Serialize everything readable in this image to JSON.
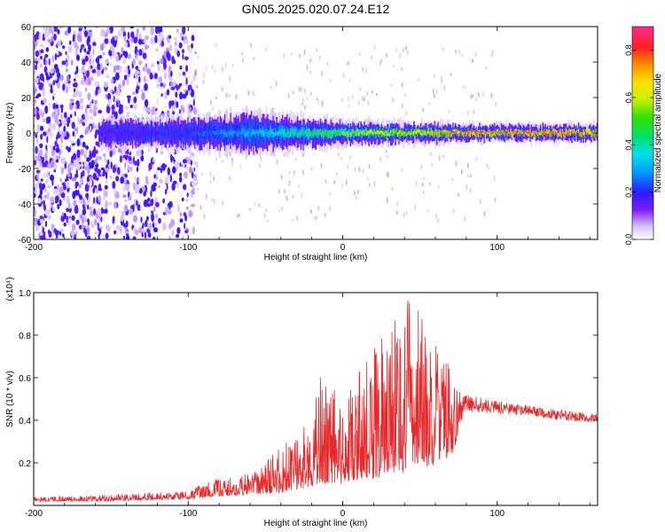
{
  "title": "GN05.2025.020.07.24.E12",
  "colors": {
    "snr_line": "#e8282a",
    "frame": "#000000",
    "spectrogram_bg": "#ffffff"
  },
  "chart_data": [
    {
      "type": "heatmap",
      "xlabel": "Height of straight line (km)",
      "ylabel": "Frequency (Hz)",
      "xlim": [
        -200,
        165
      ],
      "ylim": [
        -60,
        60
      ],
      "xticks": [
        -200,
        -100,
        0,
        100
      ],
      "yticks": [
        -60,
        -40,
        -20,
        0,
        20,
        40,
        60
      ],
      "grid": false,
      "colorbar": {
        "label": "Normalized spectral amplitude",
        "range": [
          0,
          0.9
        ],
        "ticks": [
          0.0,
          0.2,
          0.4,
          0.6,
          0.8
        ]
      },
      "description_points": {
        "band_center_hz": 0,
        "band_halfwidth_hz": [
          [
            -155,
            8
          ],
          [
            -100,
            9
          ],
          [
            -60,
            12
          ],
          [
            -35,
            10
          ],
          [
            0,
            7
          ],
          [
            60,
            6
          ],
          [
            70,
            5
          ],
          [
            165,
            5
          ]
        ],
        "band_peak_amplitude": [
          [
            -155,
            0.2
          ],
          [
            -100,
            0.25
          ],
          [
            -60,
            0.35
          ],
          [
            -30,
            0.45
          ],
          [
            0,
            0.6
          ],
          [
            50,
            0.7
          ],
          [
            70,
            0.85
          ],
          [
            120,
            0.9
          ],
          [
            165,
            0.85
          ]
        ],
        "noise_region_km": [
          -200,
          -95
        ]
      }
    },
    {
      "type": "line",
      "xlabel": "Height of straight line (km)",
      "ylabel": "SNR (10 * v/v)",
      "scale_note": "(x10⁴)",
      "xlim": [
        -200,
        165
      ],
      "ylim": [
        0,
        1.0
      ],
      "xticks": [
        -200,
        -100,
        0,
        100
      ],
      "yticks": [
        0.2,
        0.4,
        0.6,
        0.8,
        1.0
      ],
      "grid": false,
      "series": [
        {
          "values_envelope": [
            [
              -200,
              0.02,
              0.04
            ],
            [
              -150,
              0.02,
              0.05
            ],
            [
              -100,
              0.03,
              0.07
            ],
            [
              -85,
              0.04,
              0.12
            ],
            [
              -60,
              0.05,
              0.15
            ],
            [
              -40,
              0.06,
              0.28
            ],
            [
              -25,
              0.08,
              0.38
            ],
            [
              -15,
              0.1,
              0.62
            ],
            [
              0,
              0.1,
              0.5
            ],
            [
              10,
              0.12,
              0.62
            ],
            [
              20,
              0.12,
              0.74
            ],
            [
              30,
              0.15,
              0.92
            ],
            [
              40,
              0.15,
              0.95
            ],
            [
              45,
              0.2,
              1.0
            ],
            [
              55,
              0.18,
              0.82
            ],
            [
              65,
              0.2,
              0.75
            ],
            [
              72,
              0.25,
              0.65
            ],
            [
              76,
              0.38,
              0.55
            ],
            [
              80,
              0.44,
              0.52
            ],
            [
              100,
              0.43,
              0.49
            ],
            [
              120,
              0.42,
              0.47
            ],
            [
              140,
              0.4,
              0.45
            ],
            [
              165,
              0.39,
              0.43
            ]
          ]
        }
      ]
    }
  ]
}
